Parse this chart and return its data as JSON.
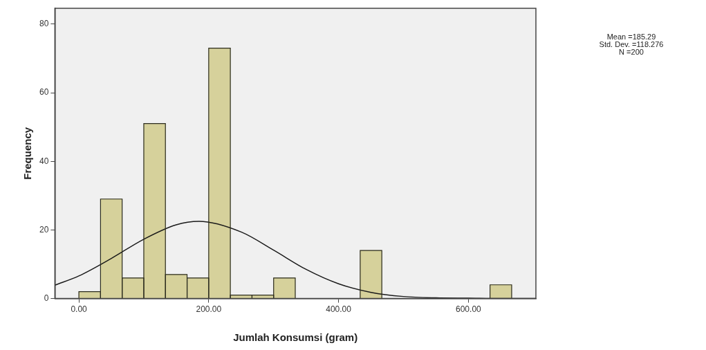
{
  "chart_data": {
    "type": "histogram",
    "xlabel": "Jumlah Konsumsi (gram)",
    "ylabel": "Frequency",
    "bins": [
      0,
      33.3,
      66.7,
      100,
      133.3,
      166.7,
      200,
      233.3,
      266.7,
      300,
      333.3,
      366.7,
      400,
      433.3,
      466.7,
      500,
      533.3,
      566.7,
      600,
      633.3,
      666.7
    ],
    "values": [
      2,
      29,
      6,
      51,
      7,
      6,
      73,
      1,
      1,
      6,
      0,
      0,
      0,
      14,
      0,
      0,
      0,
      0,
      0,
      4
    ],
    "color": "#d6d19b",
    "series": [
      {
        "type": "line",
        "color": "#1a1a1a",
        "x": [
          -37,
          0,
          50,
          100,
          150,
          185,
          250,
          300,
          350,
          400,
          450,
          500,
          550,
          600,
          650,
          704
        ],
        "values": [
          3.9,
          6.6,
          11.7,
          17.3,
          21.5,
          22.5,
          19.4,
          14.1,
          8.5,
          4.3,
          1.8,
          0.6,
          0.2,
          0.1,
          0,
          0
        ]
      }
    ],
    "xlim": [
      -37,
      704
    ],
    "xticks": [
      {
        "value": 0,
        "label": "0.00"
      },
      {
        "value": 200,
        "label": "200.00"
      },
      {
        "value": 400,
        "label": "400.00"
      },
      {
        "value": 600,
        "label": "600.00"
      }
    ],
    "ylim": [
      0,
      84.6
    ],
    "yticks": [
      0,
      20,
      40,
      60,
      80
    ],
    "grid": false,
    "legend": false,
    "annotations": [
      "Mean =185.29",
      "Std. Dev. =118.276",
      "N =200"
    ]
  }
}
